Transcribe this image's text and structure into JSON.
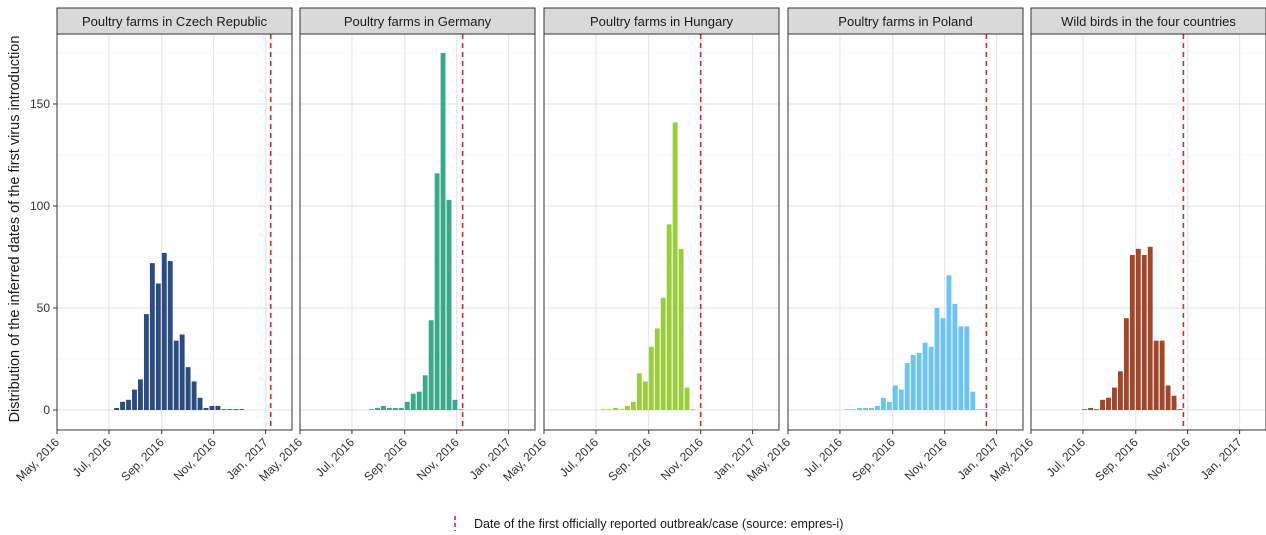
{
  "ylabel": "Distribution of the inferred dates of the first virus introduction",
  "x_tick_labels": [
    "May, 2016",
    "Jul, 2016",
    "Sep, 2016",
    "Nov, 2016",
    "Jan, 2017"
  ],
  "x_tick_dates": [
    "2016-05-01",
    "2016-07-01",
    "2016-09-01",
    "2016-11-01",
    "2017-01-01"
  ],
  "y_tick_labels": [
    "0",
    "50",
    "100",
    "150"
  ],
  "legend": {
    "label": "Date of the first officially reported outbreak/case (source: empres-i)",
    "color": "#d62728",
    "style": "dashed vertical line"
  },
  "chart_data": [
    {
      "type": "bar",
      "title": "Poultry farms in Czech Republic",
      "color": "#2b4c7e",
      "xlim": [
        "2016-05-01",
        "2017-01-31"
      ],
      "ylim": [
        -10,
        185
      ],
      "x": [
        "2016-07-10",
        "2016-07-17",
        "2016-07-24",
        "2016-07-31",
        "2016-08-07",
        "2016-08-14",
        "2016-08-21",
        "2016-08-28",
        "2016-09-04",
        "2016-09-11",
        "2016-09-18",
        "2016-09-25",
        "2016-10-02",
        "2016-10-09",
        "2016-10-16",
        "2016-10-23",
        "2016-10-30",
        "2016-11-06",
        "2016-11-13",
        "2016-11-20",
        "2016-11-27",
        "2016-12-04"
      ],
      "values": [
        1,
        4,
        5,
        10,
        15,
        47,
        72,
        62,
        77,
        73,
        34,
        37,
        21,
        14,
        6,
        1,
        2,
        2,
        0,
        0,
        0,
        0
      ],
      "reported_outbreak_date": "2017-01-07"
    },
    {
      "type": "bar",
      "title": "Poultry farms in Germany",
      "color": "#3aa98a",
      "xlim": [
        "2016-05-01",
        "2017-01-31"
      ],
      "ylim": [
        -10,
        185
      ],
      "x": [
        "2016-07-24",
        "2016-07-31",
        "2016-08-07",
        "2016-08-14",
        "2016-08-21",
        "2016-08-28",
        "2016-09-04",
        "2016-09-11",
        "2016-09-18",
        "2016-09-25",
        "2016-10-02",
        "2016-10-09",
        "2016-10-16",
        "2016-10-23",
        "2016-10-30",
        "2016-11-06"
      ],
      "values": [
        0,
        1,
        2,
        1,
        1,
        1,
        4,
        8,
        9,
        17,
        44,
        116,
        175,
        103,
        5,
        0
      ],
      "reported_outbreak_date": "2016-11-08"
    },
    {
      "type": "bar",
      "title": "Poultry farms in Hungary",
      "color": "#9acd3a",
      "xlim": [
        "2016-05-01",
        "2017-01-31"
      ],
      "ylim": [
        -10,
        185
      ],
      "x": [
        "2016-07-10",
        "2016-07-17",
        "2016-07-24",
        "2016-07-31",
        "2016-08-07",
        "2016-08-14",
        "2016-08-21",
        "2016-08-28",
        "2016-09-04",
        "2016-09-11",
        "2016-09-18",
        "2016-09-25",
        "2016-10-02",
        "2016-10-09",
        "2016-10-16",
        "2016-10-23"
      ],
      "values": [
        0,
        0,
        1,
        0,
        2,
        4,
        18,
        14,
        31,
        40,
        55,
        91,
        141,
        79,
        11,
        0
      ],
      "reported_outbreak_date": "2016-11-01"
    },
    {
      "type": "bar",
      "title": "Poultry farms in Poland",
      "color": "#6cc4f2",
      "xlim": [
        "2016-05-01",
        "2017-01-31"
      ],
      "ylim": [
        -10,
        185
      ],
      "x": [
        "2016-07-10",
        "2016-07-17",
        "2016-07-24",
        "2016-07-31",
        "2016-08-07",
        "2016-08-14",
        "2016-08-21",
        "2016-08-28",
        "2016-09-04",
        "2016-09-11",
        "2016-09-18",
        "2016-09-25",
        "2016-10-02",
        "2016-10-09",
        "2016-10-16",
        "2016-10-23",
        "2016-10-30",
        "2016-11-06",
        "2016-11-13",
        "2016-11-20",
        "2016-11-27",
        "2016-12-04",
        "2016-12-11",
        "2016-12-18"
      ],
      "values": [
        0,
        0,
        1,
        1,
        1,
        2,
        6,
        4,
        12,
        10,
        23,
        27,
        28,
        33,
        31,
        50,
        45,
        66,
        52,
        41,
        41,
        9,
        0,
        0
      ],
      "reported_outbreak_date": "2016-12-20"
    },
    {
      "type": "bar",
      "title": "Wild birds in the four countries",
      "color": "#a0462a",
      "xlim": [
        "2016-05-01",
        "2017-01-31"
      ],
      "ylim": [
        -10,
        185
      ],
      "x": [
        "2016-07-03",
        "2016-07-10",
        "2016-07-17",
        "2016-07-24",
        "2016-07-31",
        "2016-08-07",
        "2016-08-14",
        "2016-08-21",
        "2016-08-28",
        "2016-09-04",
        "2016-09-11",
        "2016-09-18",
        "2016-09-25",
        "2016-10-02",
        "2016-10-09",
        "2016-10-16",
        "2016-10-23"
      ],
      "values": [
        0,
        1,
        0,
        5,
        6,
        11,
        19,
        45,
        76,
        79,
        76,
        80,
        34,
        34,
        12,
        7,
        0
      ],
      "reported_outbreak_date": "2016-10-27"
    }
  ]
}
